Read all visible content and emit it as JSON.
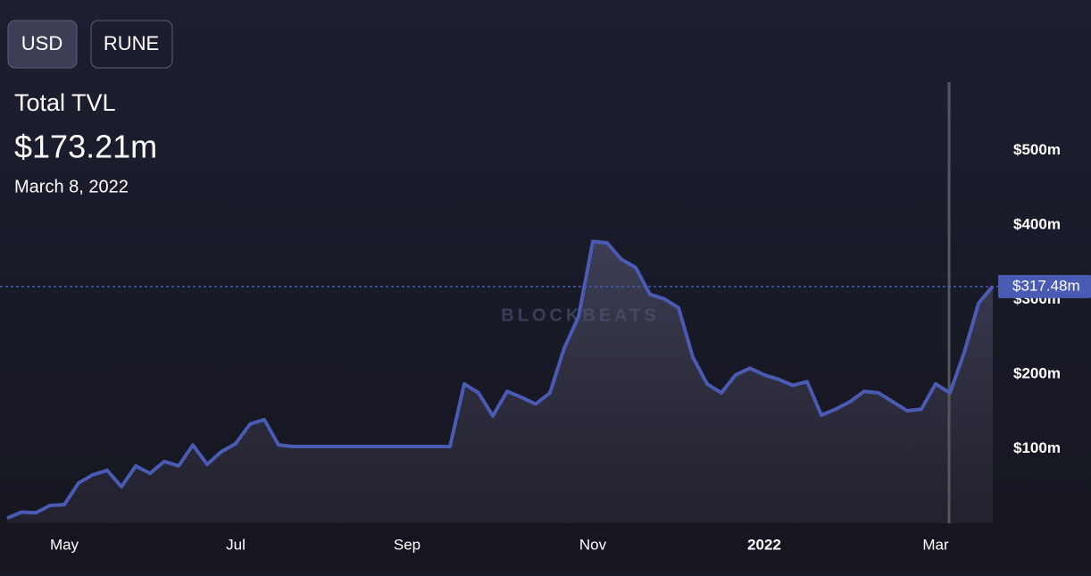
{
  "header": {
    "buttons": [
      "USD",
      "RUNE"
    ],
    "title": "Total TVL",
    "value": "$173.21m",
    "date": "March 8, 2022"
  },
  "chart_data": {
    "type": "line",
    "watermark": "BLOCKBEATS",
    "color": "#4a5bb4",
    "categories": [
      null,
      null,
      null,
      null,
      "May",
      null,
      null,
      null,
      null,
      null,
      null,
      null,
      null,
      null,
      null,
      null,
      "Jul",
      null,
      null,
      null,
      null,
      null,
      null,
      null,
      null,
      null,
      null,
      null,
      "Sep",
      null,
      null,
      null,
      null,
      null,
      null,
      null,
      null,
      null,
      null,
      null,
      null,
      "Nov",
      null,
      null,
      null,
      null,
      null,
      null,
      null,
      null,
      null,
      null,
      null,
      "2022",
      null,
      null,
      null,
      null,
      null,
      null,
      null,
      null,
      null,
      null,
      null,
      "Mar",
      null,
      null,
      null,
      null
    ],
    "values": [
      7,
      15,
      14,
      24,
      25,
      54,
      65,
      71,
      49,
      77,
      67,
      83,
      77,
      105,
      79,
      96,
      107,
      133,
      139,
      105,
      103,
      103,
      103,
      103,
      103,
      103,
      103,
      103,
      103,
      103,
      103,
      103,
      187,
      175,
      144,
      177,
      169,
      160,
      175,
      235,
      277,
      378,
      376,
      354,
      343,
      307,
      301,
      289,
      223,
      187,
      175,
      199,
      208,
      199,
      193,
      185,
      190,
      145,
      153,
      163,
      177,
      175,
      163,
      151,
      153,
      187,
      175,
      229,
      295,
      318
    ],
    "ylim": [
      0,
      600
    ],
    "yticks": [
      {
        "value": 100,
        "label": "$100m"
      },
      {
        "value": 200,
        "label": "$200m"
      },
      {
        "value": 300,
        "label": "$300m"
      },
      {
        "value": 400,
        "label": "$400m"
      },
      {
        "value": 500,
        "label": "$500m"
      }
    ],
    "current_value": 317.48,
    "current_label": "$317.48m",
    "grid": false
  }
}
